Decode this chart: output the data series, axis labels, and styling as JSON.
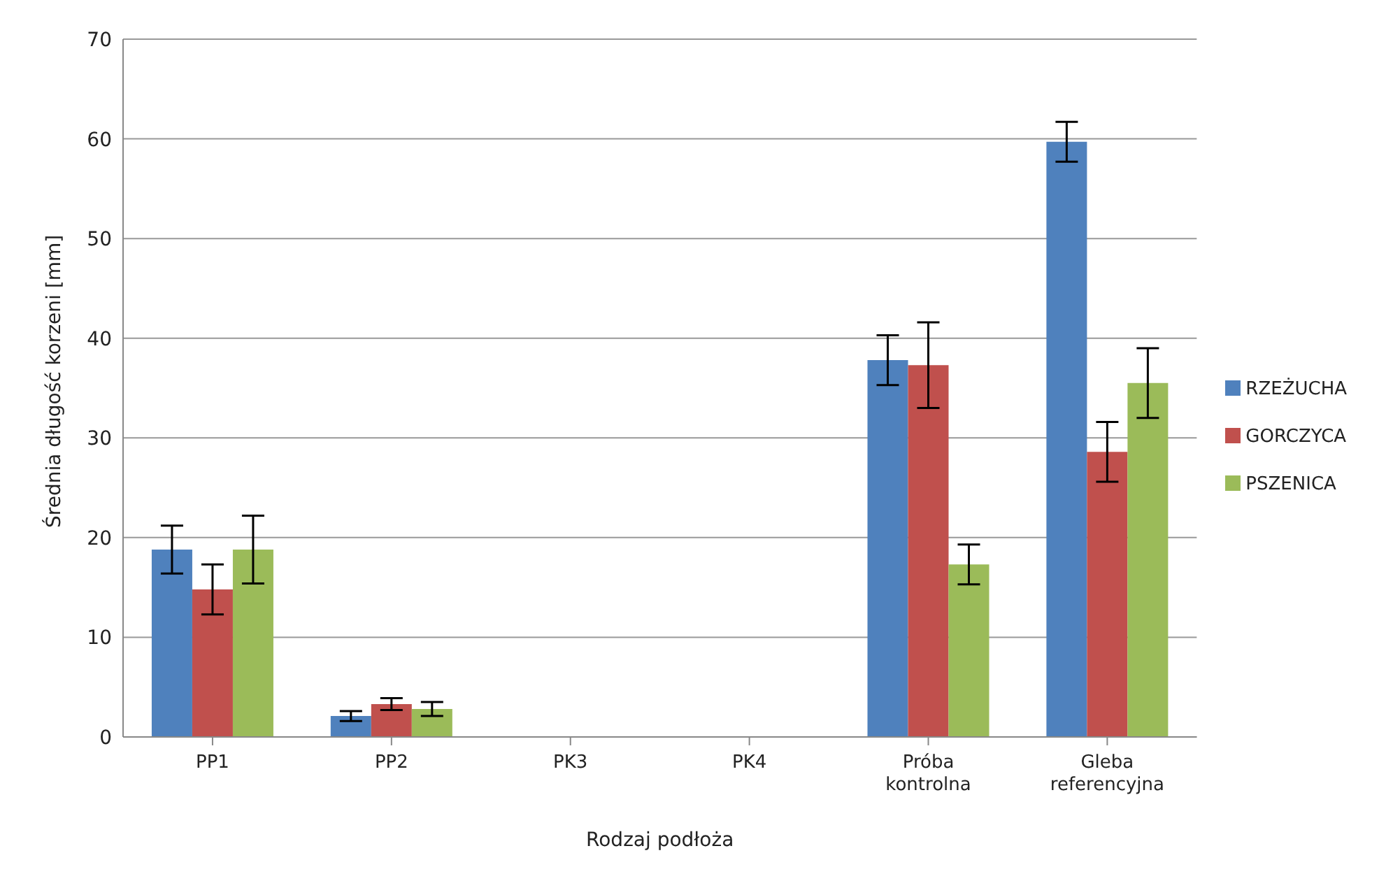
{
  "chart_data": {
    "type": "bar",
    "xlabel": "Rodzaj podłoża",
    "ylabel": "Średnia długość korzeni [mm]",
    "categories": [
      "PP1",
      "PP2",
      "PK3",
      "PK4",
      "Próba kontrolna",
      "Gleba referencyjna"
    ],
    "series": [
      {
        "name": "RZEŻUCHA",
        "color": "#4f81bd",
        "values": [
          18.8,
          2.1,
          null,
          null,
          37.8,
          59.7
        ],
        "errors": [
          2.4,
          0.5,
          null,
          null,
          2.5,
          2.0
        ]
      },
      {
        "name": "GORCZYCA",
        "color": "#c0504d",
        "values": [
          14.8,
          3.3,
          null,
          null,
          37.3,
          28.6
        ],
        "errors": [
          2.5,
          0.6,
          null,
          null,
          4.3,
          3.0
        ]
      },
      {
        "name": "PSZENICA",
        "color": "#9bbb59",
        "values": [
          18.8,
          2.8,
          null,
          null,
          17.3,
          35.5
        ],
        "errors": [
          3.4,
          0.7,
          null,
          null,
          2.0,
          3.5
        ]
      }
    ],
    "ylim": [
      0,
      70
    ],
    "yticks": [
      0,
      10,
      20,
      30,
      40,
      50,
      60,
      70
    ],
    "grid": "y",
    "legend": "right"
  }
}
